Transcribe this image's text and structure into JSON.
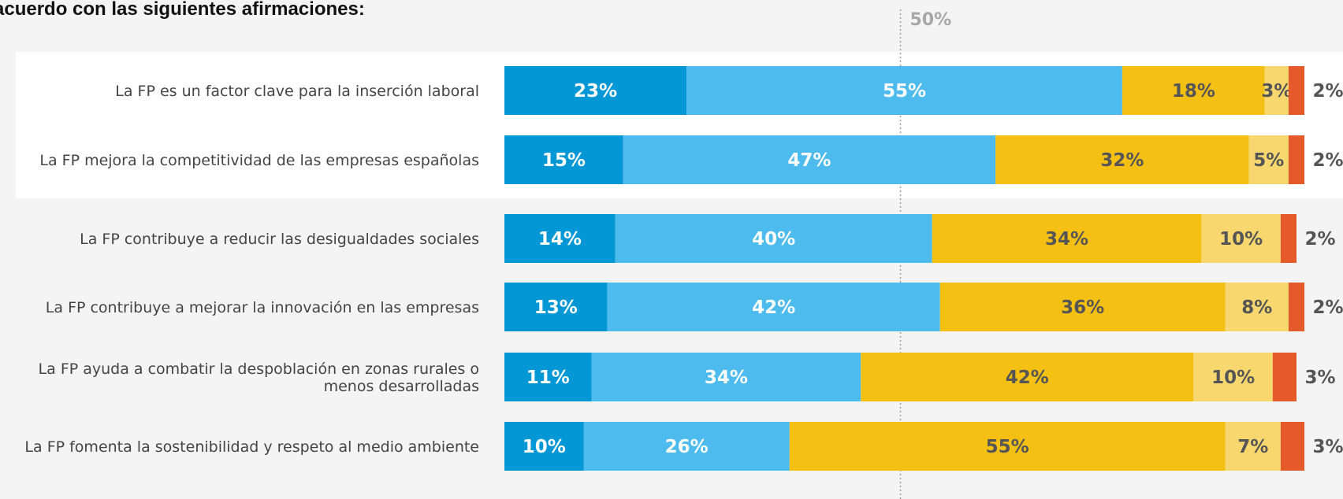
{
  "title": "acuerdo con las siguientes afirmaciones:",
  "chart_data": {
    "type": "bar",
    "orientation": "horizontal",
    "stacked": true,
    "reference_line": {
      "value": 50,
      "label": "50%"
    },
    "categories": [
      "La FP es un factor clave para la inserción laboral",
      "La FP mejora la competitividad de las empresas españolas",
      "La FP contribuye a reducir las desigualdades sociales",
      "La FP contribuye a mejorar la innovación en las empresas",
      "La FP ayuda a combatir la despoblación en zonas rurales o menos desarrolladas",
      "La FP fomenta la sostenibilidad y respeto al medio ambiente"
    ],
    "highlighted_categories": [
      0,
      1
    ],
    "series": [
      {
        "color": "#0497d6",
        "label_color": "#ffffff",
        "values": [
          23,
          15,
          14,
          13,
          11,
          10
        ]
      },
      {
        "color": "#4dbbed",
        "label_color": "#ffffff",
        "values": [
          55,
          47,
          40,
          42,
          34,
          26
        ]
      },
      {
        "color": "#f4c013",
        "label_color": "#555555",
        "values": [
          18,
          32,
          34,
          36,
          42,
          55
        ]
      },
      {
        "color": "#f8d86e",
        "label_color": "#555555",
        "values": [
          3,
          5,
          10,
          8,
          10,
          7
        ]
      },
      {
        "color": "#e55a2b",
        "label_color": "#555555",
        "values": [
          2,
          2,
          2,
          2,
          3,
          3
        ]
      }
    ],
    "value_suffix": "%"
  }
}
